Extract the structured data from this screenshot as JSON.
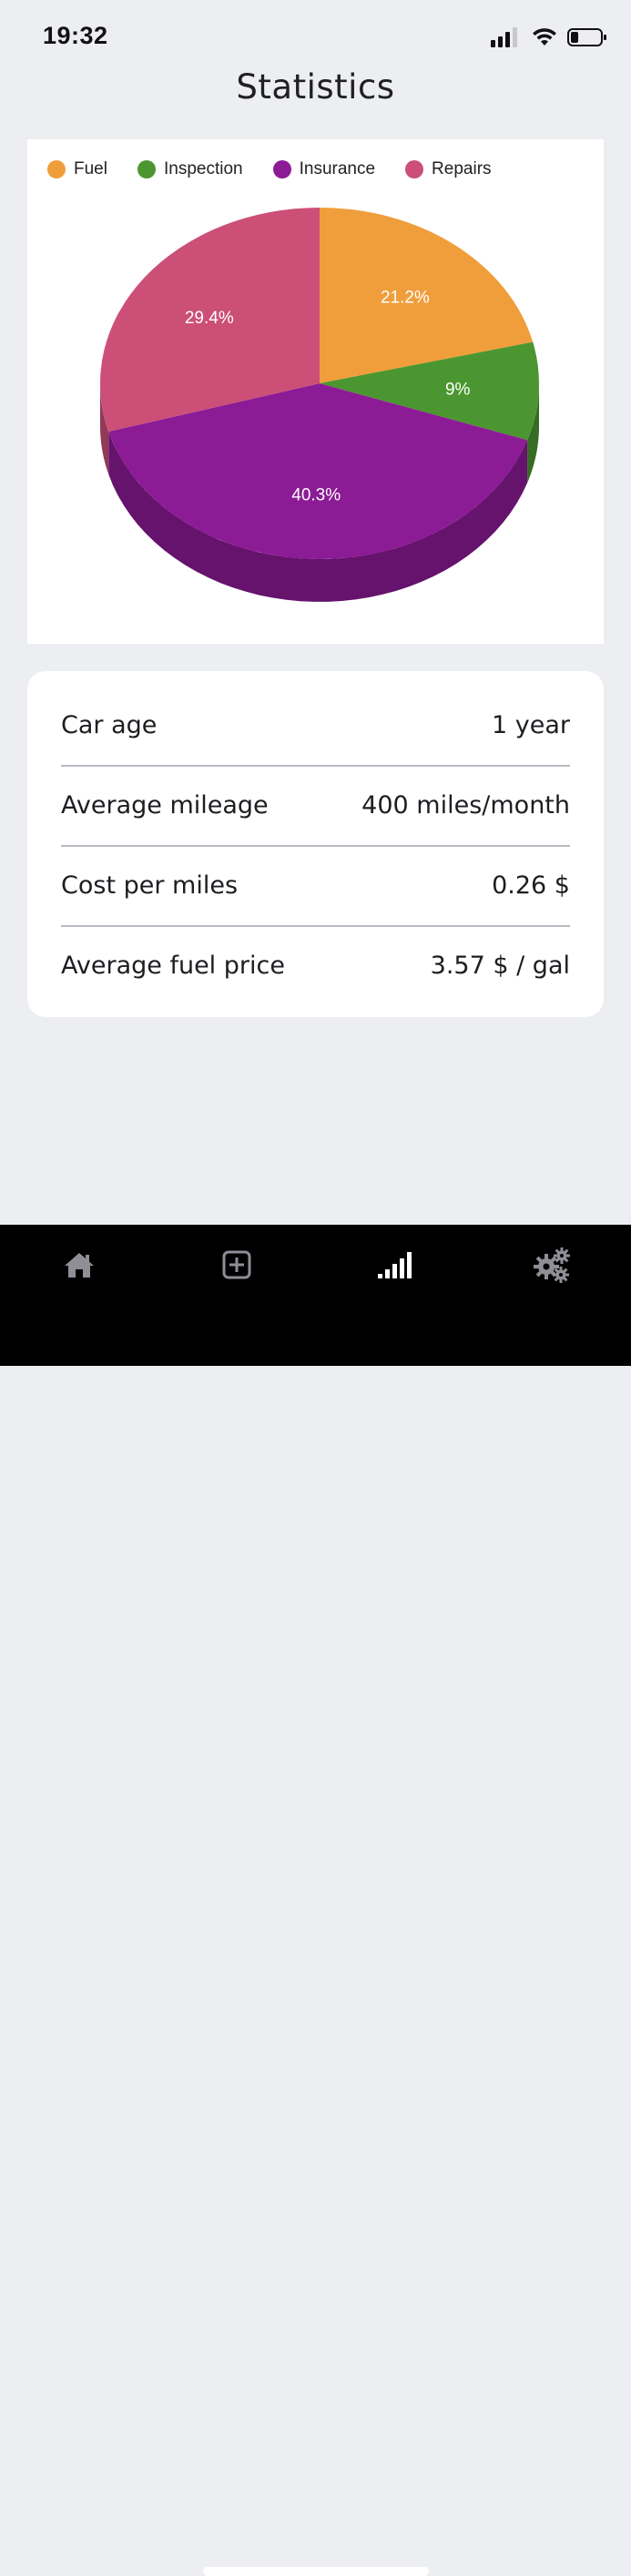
{
  "status_bar": {
    "time": "19:32",
    "icons": [
      "cellular-signal-icon",
      "wifi-icon",
      "battery-icon"
    ]
  },
  "header": {
    "title": "Statistics"
  },
  "chart_data": {
    "type": "pie",
    "categories": [
      "Fuel",
      "Inspection",
      "Insurance",
      "Repairs"
    ],
    "values": [
      21.2,
      9,
      40.3,
      29.4
    ],
    "labels": [
      "21.2%",
      "9%",
      "40.3%",
      "29.4%"
    ],
    "colors": [
      "#f09e3b",
      "#4b9630",
      "#8c1b96",
      "#cb4f77"
    ],
    "legend_position": "top",
    "style": "3d"
  },
  "stats": [
    {
      "label": "Car age",
      "value": "1 year"
    },
    {
      "label": "Average mileage",
      "value": "400 miles/month"
    },
    {
      "label": "Cost per miles",
      "value": "0.26 $"
    },
    {
      "label": "Average fuel price",
      "value": "3.57 $ / gal"
    }
  ],
  "tab_bar": {
    "tabs": [
      {
        "icon": "home-icon",
        "active": false
      },
      {
        "icon": "add-square-icon",
        "active": false
      },
      {
        "icon": "statistics-bars-icon",
        "active": true
      },
      {
        "icon": "settings-gears-icon",
        "active": false
      }
    ],
    "inactive_color": "#8e8e96",
    "active_color": "#ffffff"
  }
}
